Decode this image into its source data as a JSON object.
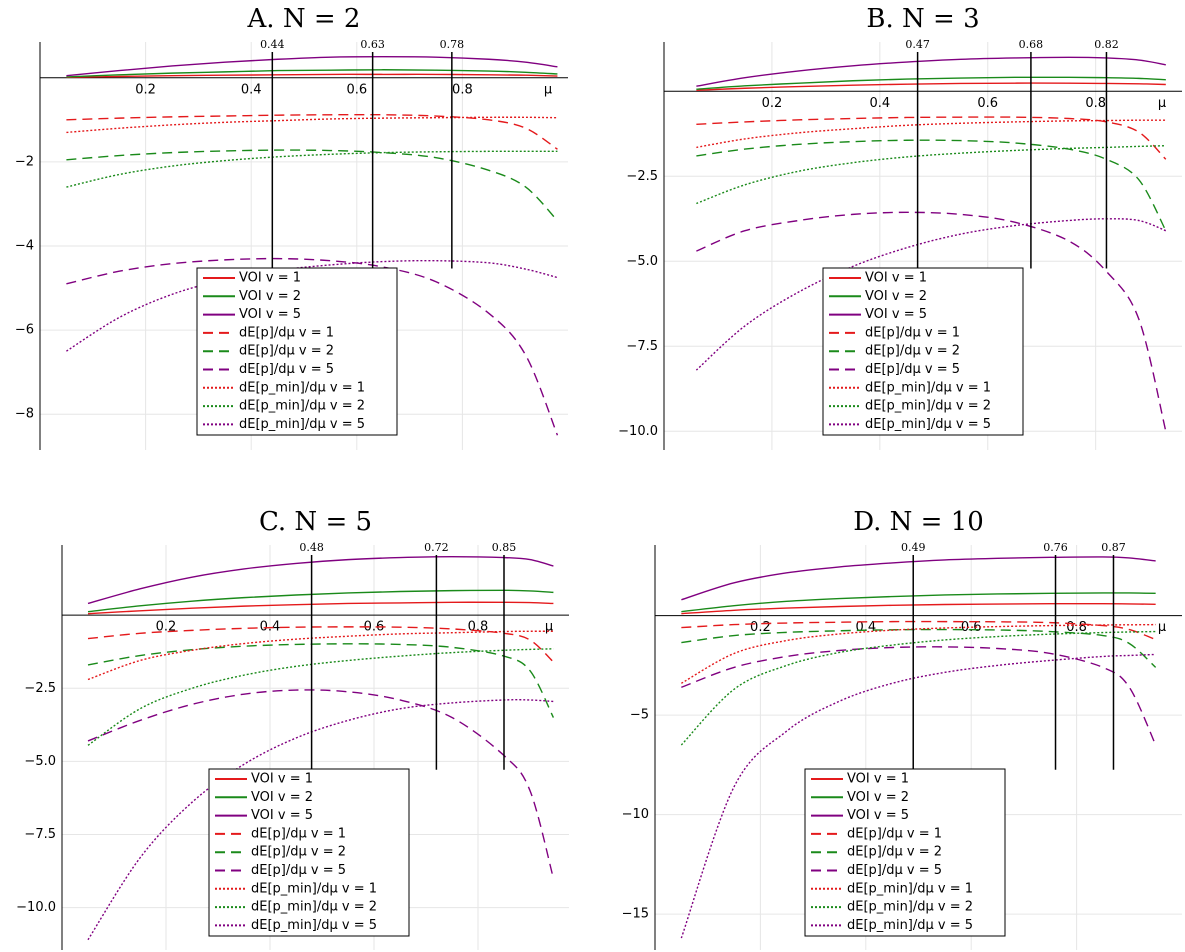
{
  "chart_data": [
    {
      "type": "line",
      "title": "A. N = 2",
      "xlabel": "μ",
      "grid": true,
      "xlim": [
        0,
        1
      ],
      "ylim": [
        -8.85,
        0.85
      ],
      "xticks": [
        0.2,
        0.4,
        0.6,
        0.8
      ],
      "yticks": [
        {
          "value": -8,
          "label": "−8"
        },
        {
          "value": -6,
          "label": "−6"
        },
        {
          "value": -4,
          "label": "−4"
        },
        {
          "value": -2,
          "label": "−2"
        }
      ],
      "vlines": [
        0.44,
        0.63,
        0.78
      ],
      "x": [
        0.05,
        0.15,
        0.25,
        0.35,
        0.45,
        0.55,
        0.65,
        0.75,
        0.85,
        0.92,
        0.98
      ],
      "series": [
        {
          "name": "VOI v = 1",
          "color": "#e41a1c",
          "style": "solid",
          "values": [
            0.01,
            0.03,
            0.05,
            0.06,
            0.07,
            0.08,
            0.08,
            0.08,
            0.07,
            0.06,
            0.04
          ]
        },
        {
          "name": "VOI v = 2",
          "color": "#1a8a1a",
          "style": "solid",
          "values": [
            0.02,
            0.07,
            0.11,
            0.14,
            0.17,
            0.18,
            0.19,
            0.18,
            0.16,
            0.13,
            0.09
          ]
        },
        {
          "name": "VOI v = 5",
          "color": "#800080",
          "style": "solid",
          "values": [
            0.05,
            0.17,
            0.28,
            0.37,
            0.44,
            0.49,
            0.5,
            0.49,
            0.44,
            0.37,
            0.26
          ]
        },
        {
          "name": "dE[p]/dμ v = 1",
          "color": "#e41a1c",
          "style": "dashed",
          "values": [
            -1.0,
            -0.96,
            -0.93,
            -0.91,
            -0.89,
            -0.88,
            -0.88,
            -0.91,
            -1.0,
            -1.2,
            -1.7
          ]
        },
        {
          "name": "dE[p]/dμ v = 2",
          "color": "#1a8a1a",
          "style": "dashed",
          "values": [
            -1.95,
            -1.85,
            -1.78,
            -1.74,
            -1.72,
            -1.73,
            -1.78,
            -1.9,
            -2.2,
            -2.6,
            -3.4
          ]
        },
        {
          "name": "dE[p]/dμ v = 5",
          "color": "#800080",
          "style": "dashed",
          "values": [
            -4.9,
            -4.6,
            -4.42,
            -4.33,
            -4.3,
            -4.35,
            -4.5,
            -4.85,
            -5.6,
            -6.6,
            -8.5
          ]
        },
        {
          "name": "dE[p_min]/dμ v = 1",
          "color": "#e41a1c",
          "style": "dotted",
          "values": [
            -1.3,
            -1.2,
            -1.12,
            -1.06,
            -1.02,
            -0.98,
            -0.96,
            -0.95,
            -0.94,
            -0.94,
            -0.95
          ]
        },
        {
          "name": "dE[p_min]/dμ v = 2",
          "color": "#1a8a1a",
          "style": "dotted",
          "values": [
            -2.6,
            -2.3,
            -2.1,
            -1.97,
            -1.88,
            -1.82,
            -1.78,
            -1.76,
            -1.75,
            -1.75,
            -1.75
          ]
        },
        {
          "name": "dE[p_min]/dμ v = 5",
          "color": "#800080",
          "style": "dotted",
          "values": [
            -6.5,
            -5.7,
            -5.15,
            -4.8,
            -4.58,
            -4.45,
            -4.37,
            -4.35,
            -4.4,
            -4.55,
            -4.75
          ]
        }
      ]
    },
    {
      "type": "line",
      "title": "B. N = 3",
      "xlabel": "μ",
      "grid": true,
      "xlim": [
        0,
        0.96
      ],
      "ylim": [
        -10.55,
        1.45
      ],
      "xticks": [
        0.2,
        0.4,
        0.6,
        0.8
      ],
      "yticks": [
        {
          "value": -10,
          "label": "−10.0"
        },
        {
          "value": -7.5,
          "label": "−7.5"
        },
        {
          "value": -5,
          "label": "−5.0"
        },
        {
          "value": -2.5,
          "label": "−2.5"
        }
      ],
      "vlines": [
        0.47,
        0.68,
        0.82
      ],
      "x": [
        0.06,
        0.15,
        0.25,
        0.35,
        0.45,
        0.55,
        0.65,
        0.75,
        0.82,
        0.88,
        0.93
      ],
      "series": [
        {
          "name": "VOI v = 1",
          "color": "#e41a1c",
          "style": "solid",
          "values": [
            0.03,
            0.09,
            0.14,
            0.18,
            0.21,
            0.23,
            0.24,
            0.24,
            0.23,
            0.22,
            0.2
          ]
        },
        {
          "name": "VOI v = 2",
          "color": "#1a8a1a",
          "style": "solid",
          "values": [
            0.06,
            0.16,
            0.24,
            0.31,
            0.36,
            0.39,
            0.41,
            0.41,
            0.4,
            0.38,
            0.34
          ]
        },
        {
          "name": "VOI v = 5",
          "color": "#800080",
          "style": "solid",
          "values": [
            0.15,
            0.4,
            0.6,
            0.75,
            0.86,
            0.94,
            0.98,
            1.0,
            0.98,
            0.92,
            0.78
          ]
        },
        {
          "name": "dE[p]/dμ v = 1",
          "color": "#e41a1c",
          "style": "dashed",
          "values": [
            -0.97,
            -0.9,
            -0.84,
            -0.8,
            -0.77,
            -0.76,
            -0.76,
            -0.8,
            -0.9,
            -1.2,
            -2.0
          ]
        },
        {
          "name": "dE[p]/dμ v = 2",
          "color": "#1a8a1a",
          "style": "dashed",
          "values": [
            -1.9,
            -1.7,
            -1.56,
            -1.48,
            -1.44,
            -1.45,
            -1.52,
            -1.7,
            -2.0,
            -2.6,
            -4.1
          ]
        },
        {
          "name": "dE[p]/dμ v = 5",
          "color": "#800080",
          "style": "dashed",
          "values": [
            -4.7,
            -4.1,
            -3.8,
            -3.62,
            -3.56,
            -3.62,
            -3.85,
            -4.4,
            -5.3,
            -6.7,
            -10.0
          ]
        },
        {
          "name": "dE[p_min]/dμ v = 1",
          "color": "#e41a1c",
          "style": "dotted",
          "values": [
            -1.65,
            -1.4,
            -1.22,
            -1.1,
            -1.0,
            -0.94,
            -0.9,
            -0.87,
            -0.86,
            -0.85,
            -0.85
          ]
        },
        {
          "name": "dE[p_min]/dμ v = 2",
          "color": "#1a8a1a",
          "style": "dotted",
          "values": [
            -3.3,
            -2.75,
            -2.35,
            -2.1,
            -1.93,
            -1.82,
            -1.74,
            -1.68,
            -1.65,
            -1.62,
            -1.6
          ]
        },
        {
          "name": "dE[p_min]/dμ v = 5",
          "color": "#800080",
          "style": "dotted",
          "values": [
            -8.2,
            -6.9,
            -5.9,
            -5.15,
            -4.6,
            -4.2,
            -3.95,
            -3.8,
            -3.75,
            -3.8,
            -4.1
          ]
        }
      ]
    },
    {
      "type": "line",
      "title": "C. N = 5",
      "xlabel": "μ",
      "grid": true,
      "xlim": [
        0,
        0.975
      ],
      "ylim": [
        -11.45,
        2.4
      ],
      "xticks": [
        0.2,
        0.4,
        0.6,
        0.8
      ],
      "yticks": [
        {
          "value": -10,
          "label": "−10.0"
        },
        {
          "value": -7.5,
          "label": "−7.5"
        },
        {
          "value": -5,
          "label": "−5.0"
        },
        {
          "value": -2.5,
          "label": "−2.5"
        }
      ],
      "vlines": [
        0.48,
        0.72,
        0.85
      ],
      "x": [
        0.05,
        0.15,
        0.25,
        0.35,
        0.45,
        0.55,
        0.65,
        0.75,
        0.85,
        0.9,
        0.945
      ],
      "series": [
        {
          "name": "VOI v = 1",
          "color": "#e41a1c",
          "style": "solid",
          "values": [
            0.05,
            0.15,
            0.24,
            0.31,
            0.36,
            0.4,
            0.42,
            0.44,
            0.44,
            0.43,
            0.4
          ]
        },
        {
          "name": "VOI v = 2",
          "color": "#1a8a1a",
          "style": "solid",
          "values": [
            0.12,
            0.32,
            0.48,
            0.6,
            0.69,
            0.76,
            0.81,
            0.84,
            0.85,
            0.83,
            0.78
          ]
        },
        {
          "name": "VOI v = 5",
          "color": "#800080",
          "style": "solid",
          "values": [
            0.4,
            0.9,
            1.3,
            1.58,
            1.77,
            1.9,
            1.97,
            2.0,
            1.97,
            1.9,
            1.68
          ]
        },
        {
          "name": "dE[p]/dμ v = 1",
          "color": "#e41a1c",
          "style": "dashed",
          "values": [
            -0.8,
            -0.62,
            -0.52,
            -0.45,
            -0.41,
            -0.4,
            -0.41,
            -0.47,
            -0.62,
            -0.85,
            -1.6
          ]
        },
        {
          "name": "dE[p]/dμ v = 2",
          "color": "#1a8a1a",
          "style": "dashed",
          "values": [
            -1.7,
            -1.38,
            -1.18,
            -1.06,
            -1.0,
            -0.98,
            -1.0,
            -1.1,
            -1.4,
            -1.9,
            -3.5
          ]
        },
        {
          "name": "dE[p]/dμ v = 5",
          "color": "#800080",
          "style": "dashed",
          "values": [
            -4.3,
            -3.6,
            -3.05,
            -2.7,
            -2.56,
            -2.62,
            -2.9,
            -3.5,
            -4.8,
            -6.0,
            -9.0
          ]
        },
        {
          "name": "dE[p_min]/dμ v = 1",
          "color": "#e41a1c",
          "style": "dotted",
          "values": [
            -2.2,
            -1.55,
            -1.2,
            -0.97,
            -0.82,
            -0.72,
            -0.64,
            -0.6,
            -0.56,
            -0.55,
            -0.55
          ]
        },
        {
          "name": "dE[p_min]/dμ v = 2",
          "color": "#1a8a1a",
          "style": "dotted",
          "values": [
            -4.45,
            -3.2,
            -2.5,
            -2.05,
            -1.75,
            -1.55,
            -1.4,
            -1.28,
            -1.2,
            -1.17,
            -1.15
          ]
        },
        {
          "name": "dE[p_min]/dμ v = 5",
          "color": "#800080",
          "style": "dotted",
          "values": [
            -11.1,
            -8.3,
            -6.4,
            -5.1,
            -4.2,
            -3.6,
            -3.2,
            -3.0,
            -2.9,
            -2.9,
            -2.95
          ]
        }
      ]
    },
    {
      "type": "line",
      "title": "D. N = 10",
      "xlabel": "μ",
      "grid": true,
      "xlim": [
        0,
        1
      ],
      "ylim": [
        -16.8,
        3.55
      ],
      "xticks": [
        0.2,
        0.4,
        0.6,
        0.8
      ],
      "yticks": [
        {
          "value": -15,
          "label": "−15"
        },
        {
          "value": -10,
          "label": "−10"
        },
        {
          "value": -5,
          "label": "−5"
        }
      ],
      "vlines": [
        0.49,
        0.76,
        0.87
      ],
      "x": [
        0.05,
        0.15,
        0.25,
        0.35,
        0.45,
        0.55,
        0.65,
        0.75,
        0.85,
        0.9,
        0.95
      ],
      "series": [
        {
          "name": "VOI v = 1",
          "color": "#e41a1c",
          "style": "solid",
          "values": [
            0.1,
            0.27,
            0.38,
            0.46,
            0.52,
            0.56,
            0.58,
            0.6,
            0.6,
            0.59,
            0.57
          ]
        },
        {
          "name": "VOI v = 2",
          "color": "#1a8a1a",
          "style": "solid",
          "values": [
            0.2,
            0.5,
            0.72,
            0.86,
            0.96,
            1.04,
            1.09,
            1.12,
            1.14,
            1.14,
            1.12
          ]
        },
        {
          "name": "VOI v = 5",
          "color": "#800080",
          "style": "solid",
          "values": [
            0.8,
            1.65,
            2.15,
            2.45,
            2.65,
            2.8,
            2.88,
            2.93,
            2.95,
            2.9,
            2.75
          ]
        },
        {
          "name": "dE[p]/dμ v = 1",
          "color": "#e41a1c",
          "style": "dashed",
          "values": [
            -0.6,
            -0.45,
            -0.37,
            -0.33,
            -0.3,
            -0.3,
            -0.31,
            -0.35,
            -0.5,
            -0.7,
            -1.2
          ]
        },
        {
          "name": "dE[p]/dμ v = 2",
          "color": "#1a8a1a",
          "style": "dashed",
          "values": [
            -1.35,
            -1.0,
            -0.84,
            -0.76,
            -0.71,
            -0.7,
            -0.72,
            -0.8,
            -1.0,
            -1.4,
            -2.6
          ]
        },
        {
          "name": "dE[p]/dμ v = 5",
          "color": "#800080",
          "style": "dashed",
          "values": [
            -3.6,
            -2.6,
            -2.05,
            -1.75,
            -1.6,
            -1.57,
            -1.65,
            -1.9,
            -2.6,
            -3.6,
            -6.5
          ]
        },
        {
          "name": "dE[p_min]/dμ v = 1",
          "color": "#e41a1c",
          "style": "dotted",
          "values": [
            -3.4,
            -1.9,
            -1.25,
            -0.92,
            -0.73,
            -0.62,
            -0.55,
            -0.5,
            -0.47,
            -0.46,
            -0.45
          ]
        },
        {
          "name": "dE[p_min]/dμ v = 2",
          "color": "#1a8a1a",
          "style": "dotted",
          "values": [
            -6.5,
            -3.7,
            -2.5,
            -1.85,
            -1.48,
            -1.22,
            -1.05,
            -0.93,
            -0.85,
            -0.82,
            -0.8
          ]
        },
        {
          "name": "dE[p_min]/dμ v = 5",
          "color": "#800080",
          "style": "dotted",
          "values": [
            -16.2,
            -8.6,
            -5.8,
            -4.3,
            -3.4,
            -2.85,
            -2.5,
            -2.25,
            -2.05,
            -2.0,
            -1.95
          ]
        }
      ]
    }
  ]
}
